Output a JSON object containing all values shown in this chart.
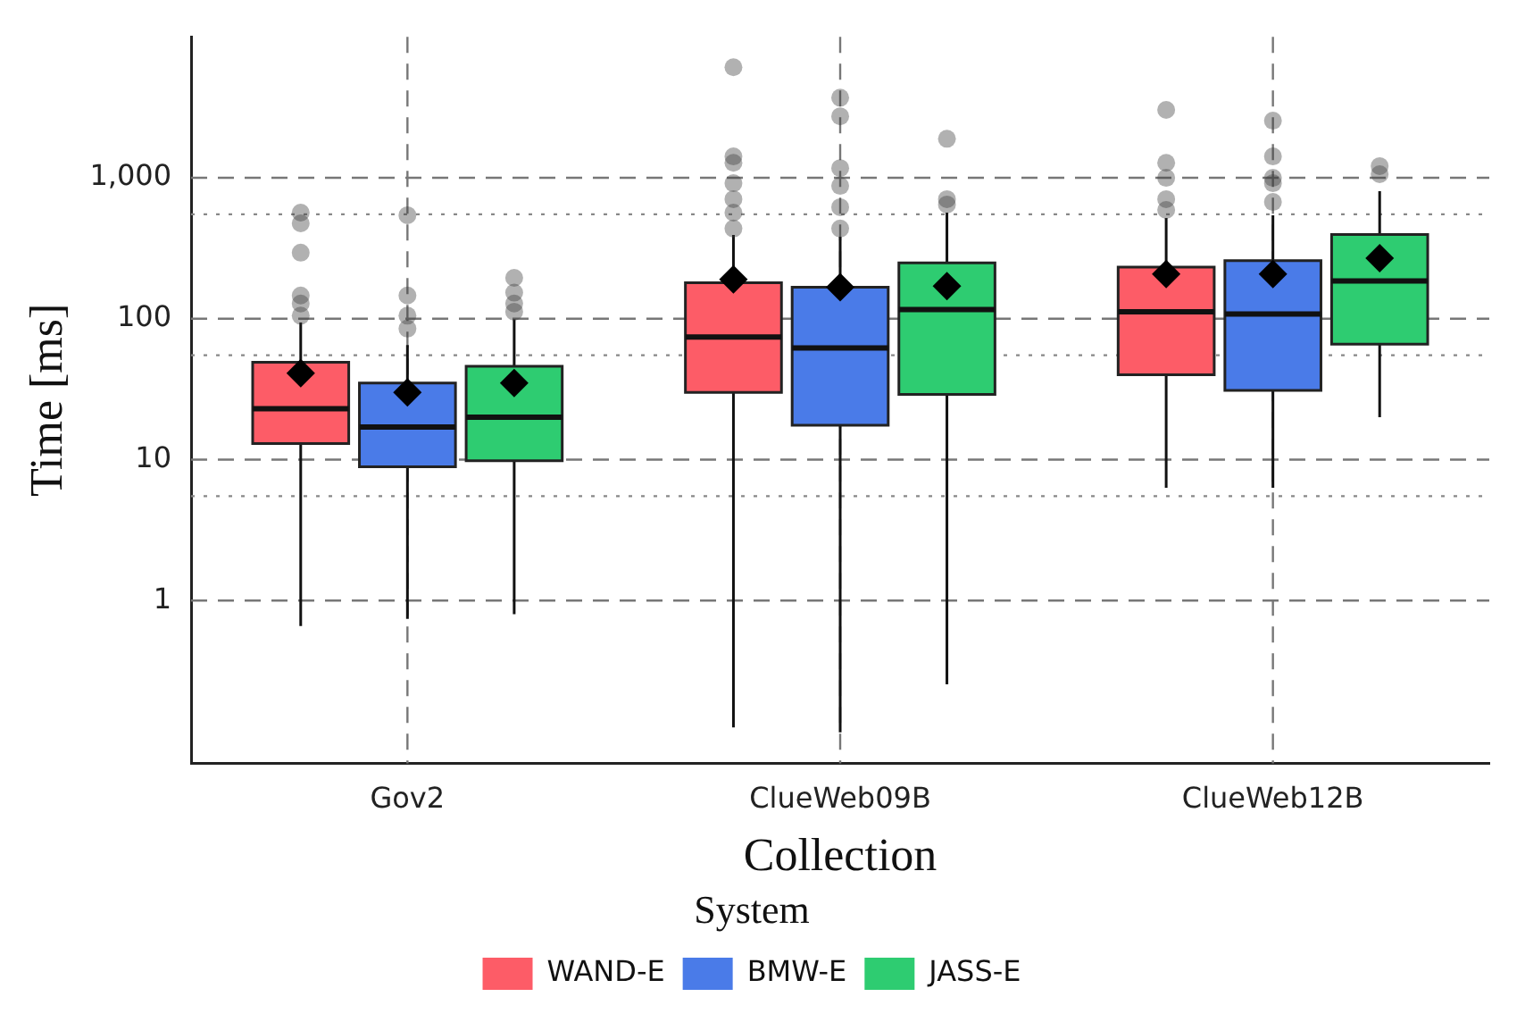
{
  "chart_data": {
    "type": "box",
    "xlabel": "Collection",
    "ylabel": "Time [ms]",
    "legend_title": "System",
    "legend": "bottom",
    "grid": true,
    "log": true,
    "categories": [
      "Gov2",
      "ClueWeb09B",
      "ClueWeb12B"
    ],
    "ylim": [
      0.07,
      10000
    ],
    "yticks": [
      1,
      10,
      100,
      {
        "value": 1000,
        "label": "1,000"
      }
    ],
    "ref_lines": [
      {
        "axis": "y",
        "value": 5.5,
        "line_style": "dotted",
        "color": "#888888"
      },
      {
        "axis": "y",
        "value": 55,
        "line_style": "dotted",
        "color": "#888888"
      },
      {
        "axis": "y",
        "value": 550,
        "line_style": "dotted",
        "color": "#888888"
      }
    ],
    "series": [
      {
        "name": "WAND-E",
        "color": "#fd5c67",
        "boxes": [
          {
            "low": 0.66,
            "q1": 13,
            "median": 23,
            "q3": 49,
            "high": 94,
            "mean": 41,
            "outliers": [
              566,
              475,
              294,
              146,
              128,
              105
            ]
          },
          {
            "low": 0.126,
            "q1": 30,
            "median": 74,
            "q3": 180,
            "high": 393,
            "mean": 190,
            "outliers": [
              6080,
              1416,
              1277,
              914,
              705,
              566,
              436
            ]
          },
          {
            "low": 6.3,
            "q1": 40,
            "median": 112,
            "q3": 232,
            "high": 518,
            "mean": 207,
            "outliers": [
              3030,
              1277,
              998,
              705,
              591
            ]
          }
        ]
      },
      {
        "name": "BMW-E",
        "color": "#4a7be8",
        "boxes": [
          {
            "low": 0.74,
            "q1": 8.9,
            "median": 17,
            "q3": 35,
            "high": 65,
            "mean": 30,
            "outliers": [
              542,
              146,
              105,
              85
            ]
          },
          {
            "low": 0.116,
            "q1": 17.5,
            "median": 62,
            "q3": 167,
            "high": 382,
            "mean": 167,
            "outliers": [
              3700,
              2730,
              1170,
              875,
              618,
              436
            ]
          },
          {
            "low": 6.3,
            "q1": 31,
            "median": 108,
            "q3": 258,
            "high": 542,
            "mean": 207,
            "outliers": [
              2540,
              1416,
              998,
              914,
              673
            ]
          }
        ]
      },
      {
        "name": "JASS-E",
        "color": "#2ecc71",
        "boxes": [
          {
            "low": 0.8,
            "q1": 9.8,
            "median": 20,
            "q3": 46,
            "high": 99,
            "mean": 35,
            "outliers": [
              195,
              153,
              128,
              112
            ]
          },
          {
            "low": 0.254,
            "q1": 29,
            "median": 116,
            "q3": 249,
            "high": 566,
            "mean": 170,
            "outliers": [
              1890,
              705,
              646
            ]
          },
          {
            "low": 20,
            "q1": 66,
            "median": 185,
            "q3": 396,
            "high": 802,
            "mean": 269,
            "outliers": [
              1210,
              1060
            ]
          }
        ]
      }
    ]
  }
}
